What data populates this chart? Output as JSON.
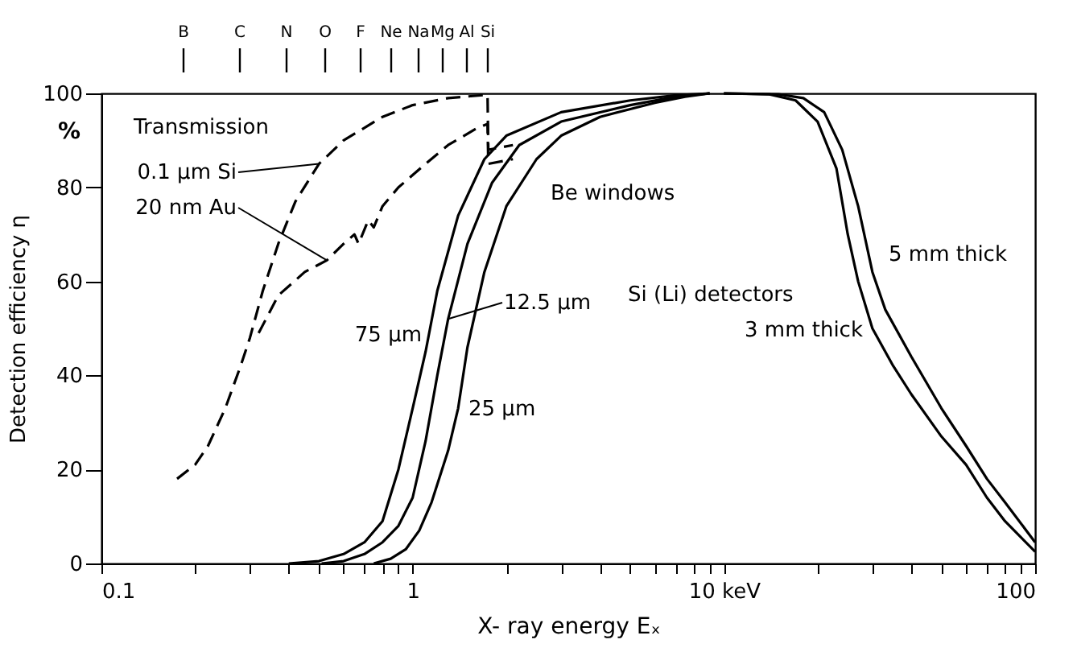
{
  "chart_data": {
    "type": "line",
    "xlabel": "X- ray energy Eₓ",
    "ylabel": "Detection efficiency η",
    "log": "x",
    "grid": false,
    "marker": "none",
    "xlim": [
      0.1,
      100
    ],
    "ylim": [
      0,
      100
    ],
    "yticks": [
      0,
      20,
      40,
      60,
      80,
      100
    ],
    "xticks": [
      "0.1",
      {
        "value": 0.2,
        "label": null
      },
      {
        "value": 0.3,
        "label": null
      },
      {
        "value": 0.4,
        "label": null
      },
      {
        "value": 0.5,
        "label": null
      },
      {
        "value": 0.6,
        "label": null
      },
      {
        "value": 0.7,
        "label": null
      },
      {
        "value": 0.8,
        "label": null
      },
      {
        "value": 0.9,
        "label": null
      },
      1,
      {
        "value": 2,
        "label": null
      },
      {
        "value": 3,
        "label": null
      },
      {
        "value": 4,
        "label": null
      },
      {
        "value": 5,
        "label": null
      },
      {
        "value": 6,
        "label": null
      },
      {
        "value": 7,
        "label": null
      },
      {
        "value": 8,
        "label": null
      },
      {
        "value": 9,
        "label": null
      },
      {
        "value": 10,
        "label": "10 keV"
      },
      {
        "value": 20,
        "label": null
      },
      {
        "value": 30,
        "label": null
      },
      {
        "value": 40,
        "label": null
      },
      {
        "value": 50,
        "label": null
      },
      {
        "value": 60,
        "label": null
      },
      {
        "value": 70,
        "label": null
      },
      {
        "value": 80,
        "label": null
      },
      {
        "value": 90,
        "label": null
      },
      100
    ],
    "annotations": [
      "%",
      "Transmission",
      "Be windows",
      "Si (Li) detectors",
      "B",
      "C",
      "N",
      "O",
      "F",
      "Ne",
      "Na",
      "Mg",
      "Al",
      "Si"
    ],
    "series": [
      {
        "name": "0.1 µm Si",
        "color": "#000000",
        "line_style": "dashed",
        "x": [
          0.175,
          0.2,
          0.22,
          0.25,
          0.28,
          0.3,
          0.33,
          0.37,
          0.42,
          0.5,
          0.6,
          0.8,
          1.0,
          1.3,
          1.74,
          1.75,
          2.1
        ],
        "values": [
          18,
          21,
          25,
          33,
          42,
          48,
          58,
          68,
          77,
          85,
          90,
          95,
          97.5,
          99,
          99.7,
          88,
          89
        ]
      },
      {
        "name": "20 nm Au",
        "color": "#000000",
        "line_style": "dashed",
        "x": [
          0.32,
          0.37,
          0.45,
          0.53,
          0.6,
          0.65,
          0.67,
          0.72,
          0.75,
          0.8,
          0.9,
          1.1,
          1.3,
          1.6,
          1.74,
          1.75,
          2.1
        ],
        "values": [
          49,
          57,
          62,
          64.5,
          68,
          70,
          68,
          73,
          71.5,
          76,
          80,
          85,
          89,
          92.5,
          93.5,
          85,
          86
        ]
      },
      {
        "name": "75 µm",
        "color": "#000000",
        "line_style": "solid",
        "x": [
          0.4,
          0.5,
          0.6,
          0.7,
          0.8,
          0.9,
          1.0,
          1.1,
          1.2,
          1.4,
          1.7,
          2,
          3,
          5,
          7,
          9
        ],
        "values": [
          0,
          0.5,
          2,
          4.5,
          9,
          20,
          33,
          45,
          58,
          74,
          86,
          91,
          96,
          98.5,
          99.6,
          100
        ]
      },
      {
        "name": "12.5 µm",
        "color": "#000000",
        "line_style": "solid",
        "x": [
          0.51,
          0.6,
          0.7,
          0.8,
          0.9,
          1.0,
          1.1,
          1.2,
          1.3,
          1.5,
          1.8,
          2.2,
          3,
          5,
          7,
          9
        ],
        "values": [
          0,
          0.5,
          2,
          4.5,
          8,
          14,
          26,
          40,
          52,
          68,
          81,
          89,
          94,
          97.5,
          99.3,
          100
        ]
      },
      {
        "name": "25 µm",
        "color": "#000000",
        "line_style": "solid",
        "x": [
          0.75,
          0.85,
          0.95,
          1.05,
          1.15,
          1.3,
          1.4,
          1.5,
          1.7,
          2,
          2.5,
          3,
          4,
          6,
          7.5,
          9
        ],
        "values": [
          0,
          1,
          3,
          7,
          13,
          24,
          33,
          46,
          62,
          76,
          86,
          91,
          95,
          98,
          99.3,
          100
        ]
      },
      {
        "name": "3 mm thick",
        "color": "#000000",
        "line_style": "solid",
        "x": [
          10,
          14,
          17,
          20,
          23,
          25,
          27,
          30,
          35,
          40,
          50,
          60,
          70,
          80,
          100
        ],
        "values": [
          100,
          99.8,
          98.5,
          94,
          84,
          70,
          60,
          50,
          42,
          36,
          27,
          21,
          14,
          9,
          2.5
        ]
      },
      {
        "name": "5 mm thick",
        "color": "#000000",
        "line_style": "solid",
        "x": [
          10,
          15,
          18,
          21,
          24,
          27,
          30,
          33,
          40,
          50,
          60,
          70,
          80,
          100
        ],
        "values": [
          100,
          99.8,
          99,
          96,
          88,
          76,
          62,
          54,
          44,
          33,
          25,
          18,
          13,
          4.5
        ]
      }
    ]
  }
}
